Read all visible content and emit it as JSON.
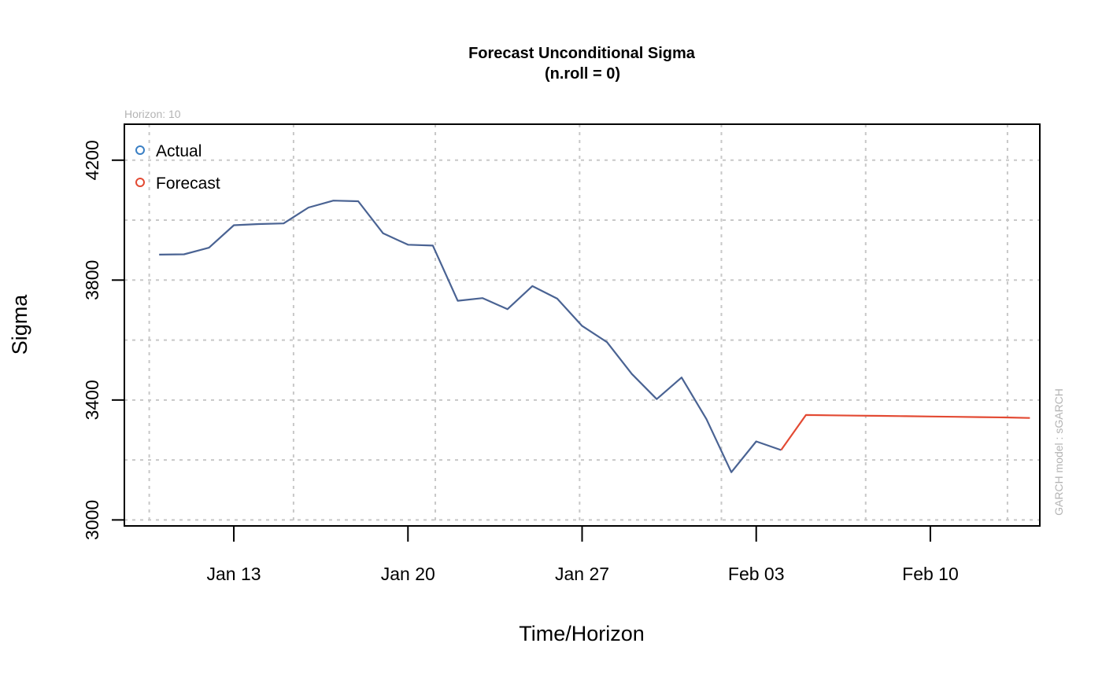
{
  "chart_data": {
    "type": "line",
    "title": "Forecast Unconditional Sigma",
    "subtitle": "(n.roll = 0)",
    "xlabel": "Time/Horizon",
    "ylabel": "Sigma",
    "horizon_label": "Horizon: 10",
    "model_label": "GARCH model :  sGARCH",
    "ylim": [
      2980,
      4320
    ],
    "y_ticks": [
      3000,
      3400,
      3800,
      4200
    ],
    "x_tick_labels": [
      "Jan 13",
      "Jan 20",
      "Jan 27",
      "Feb 03",
      "Feb 10"
    ],
    "x_tick_days": [
      13,
      20,
      27,
      34,
      41
    ],
    "xlim_days": [
      8.6,
      45.4
    ],
    "x_grid_days": [
      9.6,
      15.4,
      21.1,
      26.9,
      32.6,
      38.4,
      44.1
    ],
    "y_grid_values": [
      3000,
      3200,
      3400,
      3600,
      3800,
      4000,
      4200
    ],
    "grid": true,
    "legend_position": "top-left",
    "colors": {
      "actual": "#4a6393",
      "forecast": "#e34a33",
      "legend_actual": "#3a7fc4",
      "legend_forecast": "#e34a33",
      "grid": "#c8c8c8"
    },
    "series": [
      {
        "name": "Actual",
        "x": [
          "2020-01-10",
          "2020-01-11",
          "2020-01-12",
          "2020-01-13",
          "2020-01-14",
          "2020-01-15",
          "2020-01-16",
          "2020-01-17",
          "2020-01-18",
          "2020-01-19",
          "2020-01-20",
          "2020-01-21",
          "2020-01-22",
          "2020-01-23",
          "2020-01-24",
          "2020-01-25",
          "2020-01-26",
          "2020-01-27",
          "2020-01-28",
          "2020-01-29",
          "2020-01-30",
          "2020-01-31",
          "2020-02-01",
          "2020-02-02",
          "2020-02-03",
          "2020-02-04"
        ],
        "values": [
          3885,
          3886,
          3908,
          3983,
          3987,
          3989,
          4042,
          4065,
          4063,
          3956,
          3918,
          3915,
          3731,
          3740,
          3703,
          3780,
          3738,
          3647,
          3593,
          3487,
          3403,
          3475,
          3336,
          3159,
          3262,
          3233
        ]
      },
      {
        "name": "Forecast",
        "x": [
          "2020-02-04",
          "2020-02-05",
          "2020-02-06",
          "2020-02-07",
          "2020-02-08",
          "2020-02-09",
          "2020-02-10",
          "2020-02-11",
          "2020-02-12",
          "2020-02-13",
          "2020-02-14"
        ],
        "values": [
          3233,
          3350,
          3349,
          3348,
          3347,
          3346,
          3345,
          3344,
          3343,
          3342,
          3340
        ]
      }
    ]
  }
}
